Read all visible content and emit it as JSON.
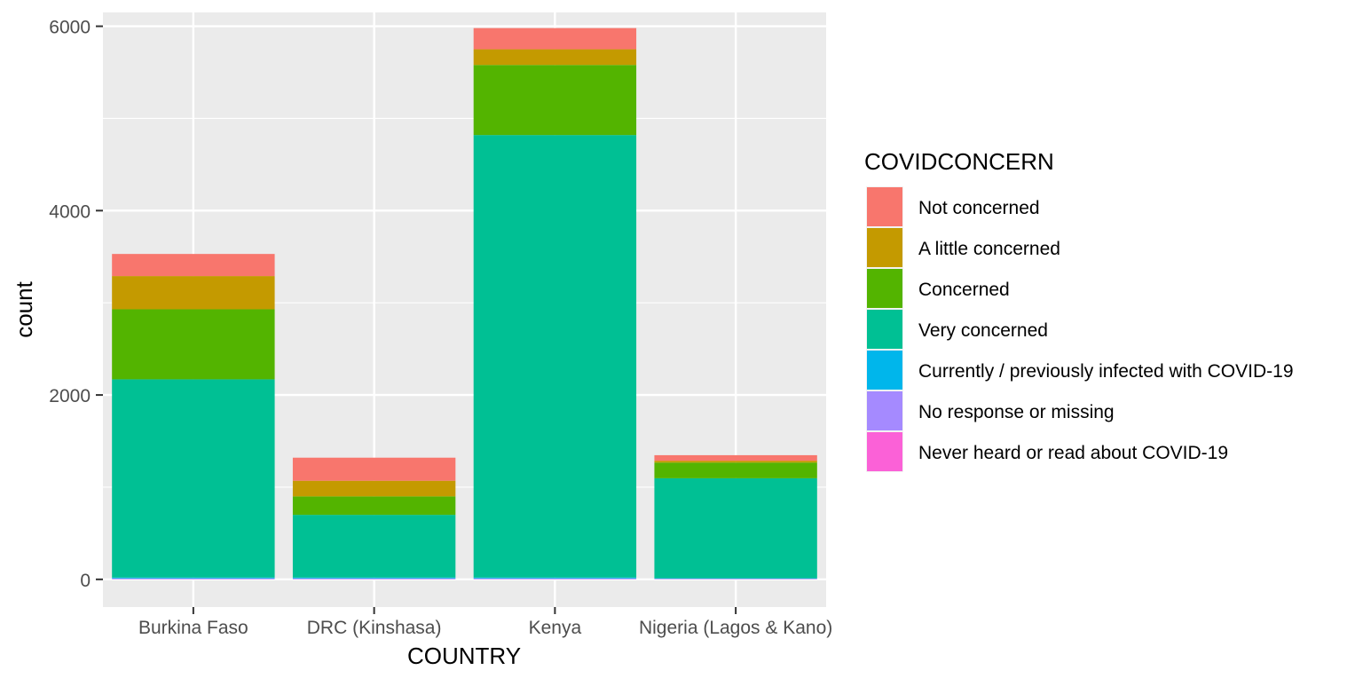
{
  "chart_data": {
    "type": "bar",
    "stacked": true,
    "xlabel": "COUNTRY",
    "ylabel": "count",
    "ylim": [
      -300,
      6150
    ],
    "yticks": [
      0,
      2000,
      4000,
      6000
    ],
    "yticks_labels": [
      "0",
      "2000",
      "4000",
      "6000"
    ],
    "categories": [
      "Burkina Faso",
      "DRC (Kinshasa)",
      "Kenya",
      "Nigeria (Lagos & Kano)"
    ],
    "grid": true,
    "legend": {
      "title": "COVIDCONCERN",
      "placement": "right"
    },
    "series": [
      {
        "name": "Not concerned",
        "color": "#F8766D",
        "values": [
          240,
          250,
          230,
          60
        ]
      },
      {
        "name": "A little concerned",
        "color": "#C49A00",
        "values": [
          360,
          170,
          170,
          20
        ]
      },
      {
        "name": "Concerned",
        "color": "#53B400",
        "values": [
          760,
          200,
          760,
          170
        ]
      },
      {
        "name": "Very concerned",
        "color": "#00C094",
        "values": [
          2150,
          680,
          4800,
          1085
        ]
      },
      {
        "name": "Currently / previously infected with COVID-19",
        "color": "#00B6EB",
        "values": [
          10,
          10,
          10,
          5
        ]
      },
      {
        "name": "No response or missing",
        "color": "#A58AFF",
        "values": [
          8,
          8,
          8,
          5
        ]
      },
      {
        "name": "Never heard or read about COVID-19",
        "color": "#FB61D7",
        "values": [
          2,
          2,
          2,
          2
        ]
      }
    ]
  }
}
